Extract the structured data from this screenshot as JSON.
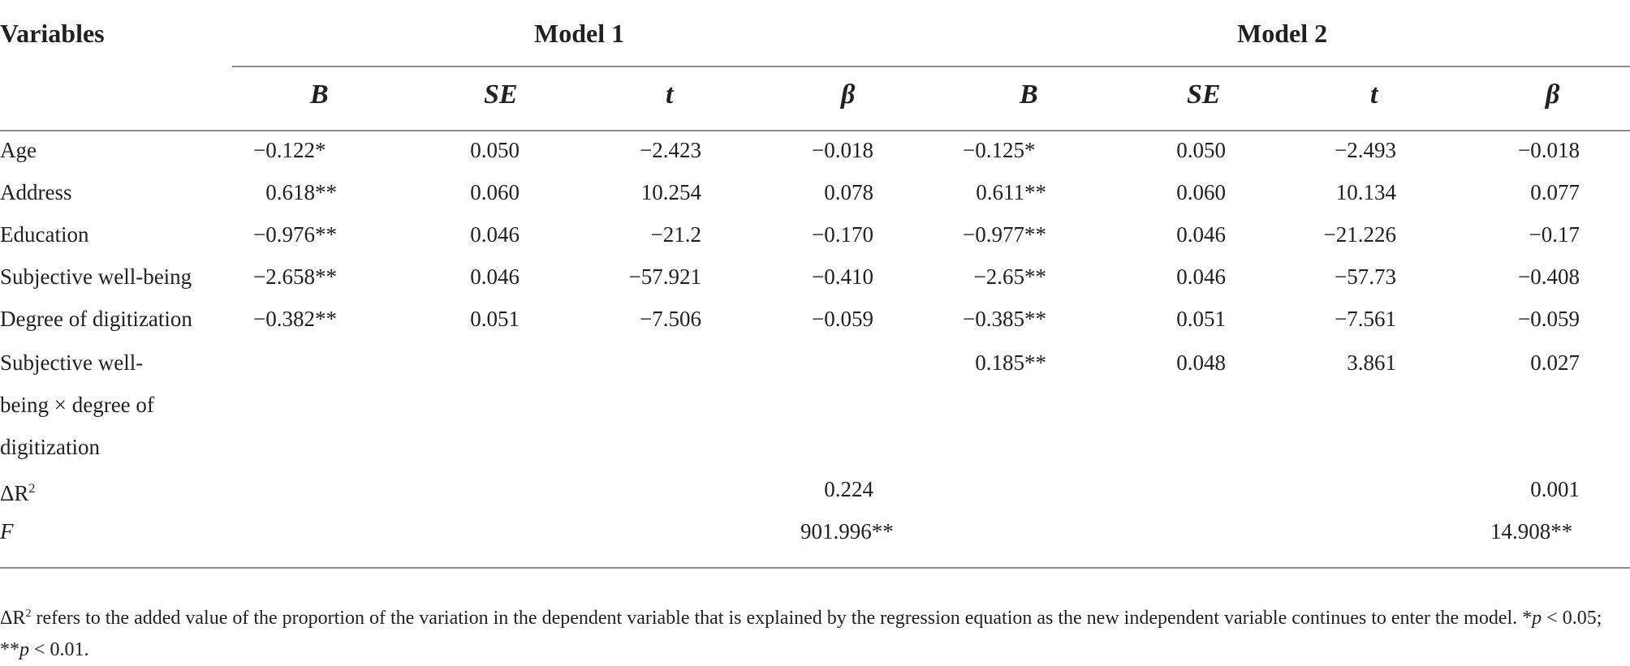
{
  "table": {
    "header": {
      "variables": "Variables",
      "model1": "Model 1",
      "model2": "Model 2",
      "sub": [
        "B",
        "SE",
        "t",
        "β",
        "B",
        "SE",
        "t",
        "β"
      ]
    },
    "rows": [
      {
        "label": "Age",
        "m1": {
          "B": "−0.122",
          "B_sig": "*",
          "SE": "0.050",
          "t": "−2.423",
          "beta": "−0.018"
        },
        "m2": {
          "B": "−0.125",
          "B_sig": "*",
          "SE": "0.050",
          "t": "−2.493",
          "beta": "−0.018"
        }
      },
      {
        "label": "Address",
        "m1": {
          "B": "0.618",
          "B_sig": "**",
          "SE": "0.060",
          "t": "10.254",
          "beta": "0.078"
        },
        "m2": {
          "B": "0.611",
          "B_sig": "**",
          "SE": "0.060",
          "t": "10.134",
          "beta": "0.077"
        }
      },
      {
        "label": "Education",
        "m1": {
          "B": "−0.976",
          "B_sig": "**",
          "SE": "0.046",
          "t": "−21.2",
          "beta": "−0.170"
        },
        "m2": {
          "B": "−0.977",
          "B_sig": "**",
          "SE": "0.046",
          "t": "−21.226",
          "beta": "−0.17"
        }
      },
      {
        "label": "Subjective well-being",
        "m1": {
          "B": "−2.658",
          "B_sig": "**",
          "SE": "0.046",
          "t": "−57.921",
          "beta": "−0.410"
        },
        "m2": {
          "B": "−2.65",
          "B_sig": "**",
          "SE": "0.046",
          "t": "−57.73",
          "beta": "−0.408"
        }
      },
      {
        "label": "Degree of digitization",
        "m1": {
          "B": "−0.382",
          "B_sig": "**",
          "SE": "0.051",
          "t": "−7.506",
          "beta": "−0.059"
        },
        "m2": {
          "B": "−0.385",
          "B_sig": "**",
          "SE": "0.051",
          "t": "−7.561",
          "beta": "−0.059"
        }
      },
      {
        "label_lines": [
          "Subjective well-",
          "being × degree of",
          "digitization"
        ],
        "m2": {
          "B": "0.185",
          "B_sig": "**",
          "SE": "0.048",
          "t": "3.861",
          "beta": "0.027"
        }
      }
    ],
    "delta_r2": {
      "label_main": "ΔR",
      "label_sup": "2",
      "m1": "0.224",
      "m2": "0.001"
    },
    "f_row": {
      "label": "F",
      "m1": "901.996",
      "m1_sig": "**",
      "m2": "14.908",
      "m2_sig": "**"
    }
  },
  "footnote": {
    "sym": "ΔR",
    "sup": "2",
    "text": " refers to the added value of the proportion of the variation in the dependent variable that is explained by the regression equation as the new independent variable continues to enter the model. ",
    "p1_stars": "*",
    "p1_var": "p",
    "p1_rest": " < 0.05; ",
    "p2_stars": "**",
    "p2_var": "p",
    "p2_rest": " < 0.01."
  }
}
